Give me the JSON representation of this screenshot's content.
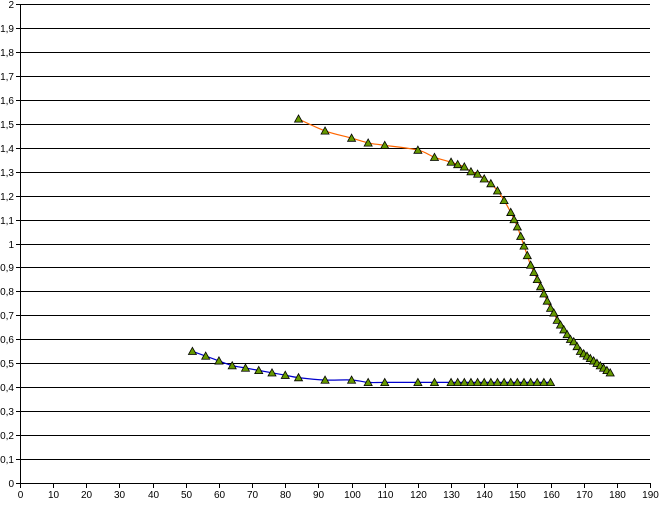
{
  "chart_data": {
    "type": "line",
    "title": "",
    "xlabel": "",
    "ylabel": "",
    "xlim": [
      0,
      190
    ],
    "ylim": [
      0,
      2
    ],
    "x_ticks": [
      "0",
      "10",
      "20",
      "30",
      "40",
      "50",
      "60",
      "70",
      "80",
      "90",
      "100",
      "110",
      "120",
      "130",
      "140",
      "150",
      "160",
      "170",
      "180",
      "190"
    ],
    "y_ticks": [
      "0",
      "0,1",
      "0,2",
      "0,3",
      "0,4",
      "0,5",
      "0,6",
      "0,7",
      "0,8",
      "0,9",
      "1",
      "1,1",
      "1,2",
      "1,3",
      "1,4",
      "1,5",
      "1,6",
      "1,7",
      "1,8",
      "1,9",
      "2"
    ],
    "grid": true,
    "legend": "none",
    "series": [
      {
        "line_color": "#ff6600",
        "marker": "triangle",
        "marker_fill": "#669900",
        "marker_stroke": "#000000",
        "points": [
          [
            84,
            1.52
          ],
          [
            92,
            1.47
          ],
          [
            100,
            1.44
          ],
          [
            105,
            1.42
          ],
          [
            110,
            1.41
          ],
          [
            120,
            1.39
          ],
          [
            125,
            1.36
          ],
          [
            130,
            1.34
          ],
          [
            132,
            1.33
          ],
          [
            134,
            1.32
          ],
          [
            136,
            1.3
          ],
          [
            138,
            1.29
          ],
          [
            140,
            1.27
          ],
          [
            142,
            1.25
          ],
          [
            144,
            1.22
          ],
          [
            146,
            1.18
          ],
          [
            148,
            1.13
          ],
          [
            149,
            1.1
          ],
          [
            150,
            1.07
          ],
          [
            151,
            1.03
          ],
          [
            152,
            0.99
          ],
          [
            153,
            0.95
          ],
          [
            154,
            0.91
          ],
          [
            155,
            0.88
          ],
          [
            156,
            0.85
          ],
          [
            157,
            0.82
          ],
          [
            158,
            0.79
          ],
          [
            159,
            0.76
          ],
          [
            160,
            0.73
          ],
          [
            161,
            0.71
          ],
          [
            162,
            0.68
          ],
          [
            163,
            0.66
          ],
          [
            164,
            0.64
          ],
          [
            165,
            0.62
          ],
          [
            166,
            0.6
          ],
          [
            167,
            0.59
          ],
          [
            168,
            0.57
          ],
          [
            169,
            0.55
          ],
          [
            170,
            0.54
          ],
          [
            171,
            0.53
          ],
          [
            172,
            0.52
          ],
          [
            173,
            0.51
          ],
          [
            174,
            0.5
          ],
          [
            175,
            0.49
          ],
          [
            176,
            0.48
          ],
          [
            177,
            0.47
          ],
          [
            178,
            0.46
          ]
        ]
      },
      {
        "line_color": "#0000cc",
        "marker": "triangle",
        "marker_fill": "#669900",
        "marker_stroke": "#000000",
        "points": [
          [
            52,
            0.55
          ],
          [
            56,
            0.53
          ],
          [
            60,
            0.51
          ],
          [
            64,
            0.49
          ],
          [
            68,
            0.48
          ],
          [
            72,
            0.47
          ],
          [
            76,
            0.46
          ],
          [
            80,
            0.45
          ],
          [
            84,
            0.44
          ],
          [
            92,
            0.43
          ],
          [
            100,
            0.43
          ],
          [
            105,
            0.42
          ],
          [
            110,
            0.42
          ],
          [
            120,
            0.42
          ],
          [
            125,
            0.42
          ],
          [
            130,
            0.42
          ],
          [
            132,
            0.42
          ],
          [
            134,
            0.42
          ],
          [
            136,
            0.42
          ],
          [
            138,
            0.42
          ],
          [
            140,
            0.42
          ],
          [
            142,
            0.42
          ],
          [
            144,
            0.42
          ],
          [
            146,
            0.42
          ],
          [
            148,
            0.42
          ],
          [
            150,
            0.42
          ],
          [
            152,
            0.42
          ],
          [
            154,
            0.42
          ],
          [
            156,
            0.42
          ],
          [
            158,
            0.42
          ],
          [
            160,
            0.42
          ]
        ]
      }
    ]
  }
}
